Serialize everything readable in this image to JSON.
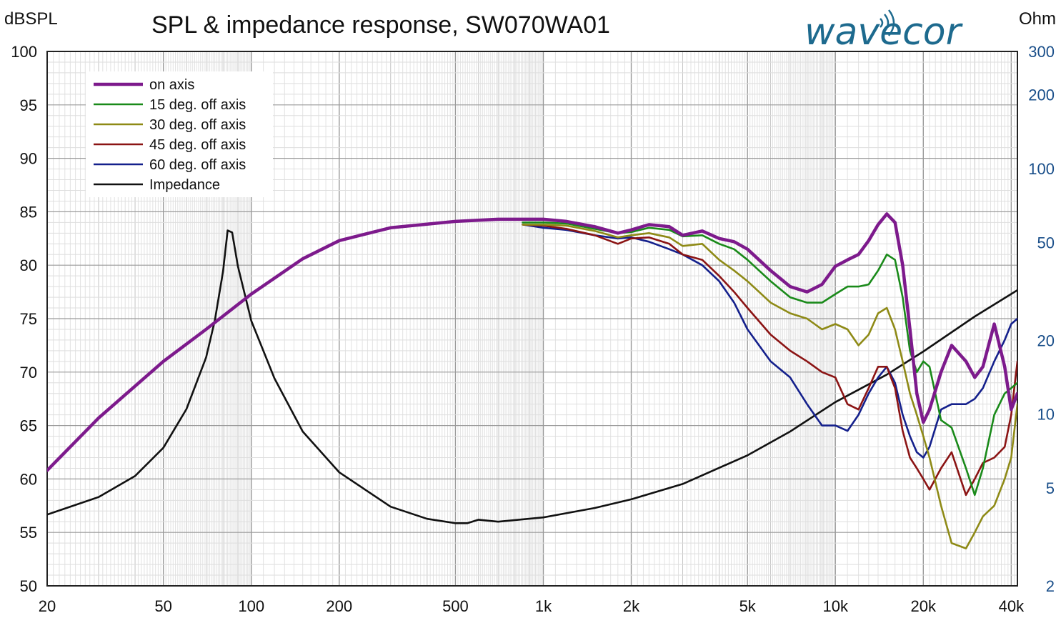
{
  "chart_data": {
    "type": "line",
    "title": "SPL & impedance response, SW070WA01",
    "ylabel": "dBSPL",
    "y2label": "Ohm",
    "brand": "wavecor",
    "x_scale": "log",
    "xlim": [
      20,
      42000
    ],
    "ylim": [
      50,
      100
    ],
    "y2lim": [
      2,
      300
    ],
    "y2_scale": "log",
    "grid": true,
    "legend_position": "top-left",
    "x_ticks": [
      {
        "value": 20,
        "label": "20"
      },
      {
        "value": 50,
        "label": "50"
      },
      {
        "value": 100,
        "label": "100"
      },
      {
        "value": 200,
        "label": "200"
      },
      {
        "value": 500,
        "label": "500"
      },
      {
        "value": 1000,
        "label": "1k"
      },
      {
        "value": 2000,
        "label": "2k"
      },
      {
        "value": 5000,
        "label": "5k"
      },
      {
        "value": 10000,
        "label": "10k"
      },
      {
        "value": 20000,
        "label": "20k"
      },
      {
        "value": 40000,
        "label": "40k"
      }
    ],
    "y_ticks": [
      {
        "value": 100,
        "label": "100"
      },
      {
        "value": 95,
        "label": "95"
      },
      {
        "value": 90,
        "label": "90"
      },
      {
        "value": 85,
        "label": "85"
      },
      {
        "value": 80,
        "label": "80"
      },
      {
        "value": 75,
        "label": "75"
      },
      {
        "value": 70,
        "label": "70"
      },
      {
        "value": 65,
        "label": "65"
      },
      {
        "value": 60,
        "label": "60"
      },
      {
        "value": 55,
        "label": "55"
      },
      {
        "value": 50,
        "label": "50"
      }
    ],
    "y2_ticks": [
      {
        "value": 300,
        "label": "300"
      },
      {
        "value": 200,
        "label": "200"
      },
      {
        "value": 100,
        "label": "100"
      },
      {
        "value": 50,
        "label": "50"
      },
      {
        "value": 20,
        "label": "20"
      },
      {
        "value": 10,
        "label": "10"
      },
      {
        "value": 5,
        "label": "5"
      },
      {
        "value": 2,
        "label": "2"
      }
    ],
    "series": [
      {
        "name": "on axis",
        "color": "#7d1a8c",
        "axis": "left",
        "x": [
          20,
          30,
          50,
          70,
          100,
          150,
          200,
          300,
          500,
          700,
          850,
          1000,
          1200,
          1500,
          1800,
          2000,
          2300,
          2700,
          3000,
          3500,
          4000,
          4500,
          5000,
          6000,
          7000,
          8000,
          9000,
          10000,
          11000,
          12000,
          13000,
          14000,
          15000,
          16000,
          17000,
          18000,
          19000,
          20000,
          21000,
          23000,
          25000,
          28000,
          30000,
          32000,
          35000,
          38000,
          40000,
          42000
        ],
        "y": [
          60.8,
          65.7,
          71.0,
          74.0,
          77.3,
          80.6,
          82.3,
          83.5,
          84.1,
          84.3,
          84.3,
          84.3,
          84.1,
          83.6,
          83.0,
          83.3,
          83.8,
          83.6,
          82.8,
          83.2,
          82.5,
          82.2,
          81.5,
          79.5,
          78.0,
          77.5,
          78.2,
          79.9,
          80.5,
          81.0,
          82.3,
          83.8,
          84.8,
          84.0,
          80.0,
          74.0,
          68.0,
          65.3,
          66.5,
          70.0,
          72.5,
          71.0,
          69.5,
          70.5,
          74.5,
          70.5,
          66.5,
          68.0
        ]
      },
      {
        "name": "15 deg. off axis",
        "color": "#1a8a1a",
        "axis": "left",
        "x": [
          850,
          1000,
          1200,
          1500,
          1800,
          2000,
          2300,
          2700,
          3000,
          3500,
          4000,
          4500,
          5000,
          6000,
          7000,
          8000,
          9000,
          10000,
          11000,
          12000,
          13000,
          14000,
          15000,
          16000,
          17000,
          18000,
          19000,
          20000,
          21000,
          23000,
          25000,
          28000,
          30000,
          32000,
          35000,
          38000,
          40000,
          42000
        ],
        "y": [
          84.0,
          84.0,
          83.9,
          83.4,
          83.0,
          83.1,
          83.5,
          83.3,
          82.7,
          82.8,
          82.0,
          81.5,
          80.5,
          78.5,
          77.0,
          76.5,
          76.5,
          77.3,
          78.0,
          78.0,
          78.2,
          79.5,
          81.0,
          80.5,
          77.0,
          72.0,
          70.0,
          71.0,
          70.5,
          65.5,
          64.8,
          61.0,
          58.5,
          61.0,
          66.0,
          68.0,
          68.5,
          69.0
        ]
      },
      {
        "name": "30 deg. off axis",
        "color": "#8e8a16",
        "axis": "left",
        "x": [
          850,
          1000,
          1200,
          1500,
          1800,
          2000,
          2300,
          2700,
          3000,
          3500,
          4000,
          4500,
          5000,
          6000,
          7000,
          8000,
          9000,
          10000,
          11000,
          12000,
          13000,
          14000,
          15000,
          16000,
          17000,
          18000,
          19000,
          20000,
          21000,
          23000,
          25000,
          28000,
          30000,
          32000,
          35000,
          38000,
          40000,
          42000
        ],
        "y": [
          83.8,
          83.8,
          83.7,
          83.2,
          82.6,
          82.8,
          83.0,
          82.6,
          81.8,
          82.0,
          80.5,
          79.5,
          78.5,
          76.5,
          75.5,
          75.0,
          74.0,
          74.5,
          74.0,
          72.5,
          73.5,
          75.5,
          76.0,
          74.0,
          71.0,
          68.0,
          66.0,
          64.0,
          62.0,
          57.5,
          54.0,
          53.5,
          55.0,
          56.5,
          57.5,
          60.0,
          62.0,
          67.0
        ]
      },
      {
        "name": "45 deg. off axis",
        "color": "#8b1414",
        "axis": "left",
        "x": [
          850,
          1000,
          1200,
          1500,
          1800,
          2000,
          2300,
          2700,
          3000,
          3500,
          4000,
          4500,
          5000,
          6000,
          7000,
          8000,
          9000,
          10000,
          11000,
          12000,
          13000,
          14000,
          15000,
          16000,
          17000,
          18000,
          19000,
          20000,
          21000,
          23000,
          25000,
          28000,
          30000,
          32000,
          35000,
          38000,
          40000,
          42000
        ],
        "y": [
          83.8,
          83.7,
          83.4,
          82.8,
          82.0,
          82.5,
          82.6,
          82.0,
          81.0,
          80.5,
          79.0,
          77.5,
          76.0,
          73.5,
          72.0,
          71.0,
          70.0,
          69.5,
          67.0,
          66.5,
          68.5,
          70.5,
          70.5,
          68.5,
          64.5,
          62.0,
          61.0,
          60.0,
          59.0,
          61.0,
          62.5,
          58.5,
          60.0,
          61.5,
          62.0,
          63.0,
          66.0,
          71.0
        ]
      },
      {
        "name": "60 deg. off axis",
        "color": "#14208c",
        "axis": "left",
        "x": [
          850,
          1000,
          1200,
          1500,
          1800,
          2000,
          2300,
          2700,
          3000,
          3500,
          4000,
          4500,
          5000,
          6000,
          7000,
          8000,
          9000,
          10000,
          11000,
          12000,
          13000,
          14000,
          15000,
          16000,
          17000,
          18000,
          19000,
          20000,
          21000,
          23000,
          25000,
          28000,
          30000,
          32000,
          35000,
          38000,
          40000,
          42000
        ],
        "y": [
          83.8,
          83.5,
          83.3,
          82.8,
          82.5,
          82.6,
          82.2,
          81.5,
          81.0,
          80.0,
          78.5,
          76.5,
          74.0,
          71.0,
          69.5,
          67.0,
          65.0,
          65.0,
          64.5,
          66.0,
          68.0,
          69.5,
          70.5,
          69.0,
          66.0,
          64.0,
          62.5,
          62.0,
          63.0,
          66.5,
          67.0,
          67.0,
          67.5,
          68.5,
          71.0,
          73.0,
          74.5,
          75.0
        ]
      },
      {
        "name": "Impedance",
        "color": "#111111",
        "axis": "right",
        "x": [
          20,
          30,
          40,
          50,
          60,
          70,
          75,
          80,
          83,
          86,
          90,
          100,
          120,
          150,
          200,
          300,
          400,
          500,
          550,
          600,
          700,
          1000,
          1500,
          2000,
          3000,
          5000,
          7000,
          10000,
          15000,
          20000,
          30000,
          42000
        ],
        "y": [
          3.9,
          4.6,
          5.6,
          7.3,
          10.5,
          17.0,
          24.0,
          38.0,
          56.0,
          55.0,
          40.0,
          24.0,
          14.0,
          8.5,
          5.8,
          4.2,
          3.75,
          3.6,
          3.6,
          3.72,
          3.65,
          3.8,
          4.15,
          4.5,
          5.2,
          6.8,
          8.5,
          11.2,
          14.5,
          18.0,
          25.0,
          32.0
        ]
      }
    ]
  }
}
